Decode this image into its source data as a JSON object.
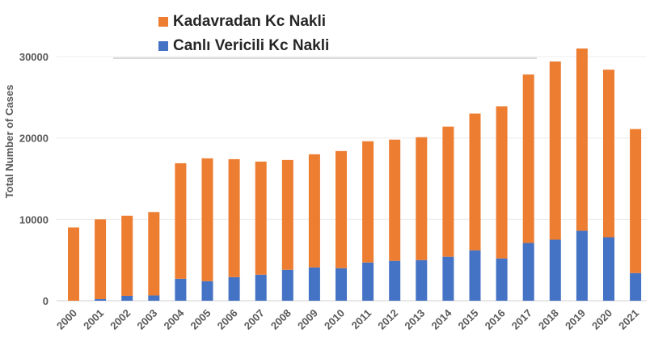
{
  "chart_data": {
    "type": "bar",
    "stacked": true,
    "title": "",
    "xlabel": "",
    "ylabel": "Total Number of Cases",
    "ylim": [
      0,
      31000
    ],
    "yticks": [
      0,
      10000,
      20000,
      30000
    ],
    "grid": true,
    "legend_position": "top-left",
    "categories": [
      "2000",
      "2001",
      "2002",
      "2003",
      "2004",
      "2005",
      "2006",
      "2007",
      "2008",
      "2009",
      "2010",
      "2011",
      "2012",
      "2013",
      "2014",
      "2015",
      "2016",
      "2017",
      "2018",
      "2019",
      "2020",
      "2021"
    ],
    "series": [
      {
        "name": "Canlı Vericili Kc Nakli",
        "color": "#4472C4",
        "values": [
          0,
          200,
          600,
          650,
          2700,
          2400,
          2900,
          3200,
          3800,
          4100,
          4000,
          4700,
          4900,
          5000,
          5400,
          6200,
          5200,
          7100,
          7500,
          8600,
          7800,
          3400
        ]
      },
      {
        "name": "Kadavradan Kc Nakli",
        "color": "#ED7D31",
        "values": [
          9000,
          9800,
          9850,
          10250,
          14200,
          15100,
          14500,
          13900,
          13500,
          13900,
          14400,
          14900,
          14900,
          15100,
          16000,
          16800,
          18700,
          20700,
          21900,
          22400,
          20600,
          17700
        ]
      }
    ]
  }
}
